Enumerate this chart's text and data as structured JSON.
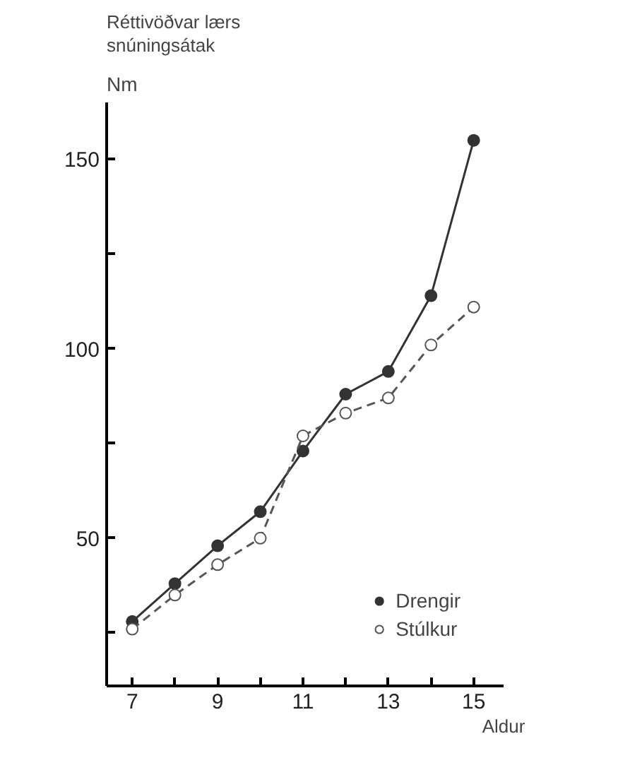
{
  "chart_data": {
    "type": "line",
    "title": "Réttivöðvar lærs\nsnúningsátak",
    "ylabel": "Nm",
    "xlabel": "Aldur",
    "x": [
      7,
      8,
      9,
      10,
      11,
      12,
      13,
      14,
      15
    ],
    "series": [
      {
        "name": "Drengir",
        "color": "#333333",
        "marker": "circle",
        "line_style": "solid",
        "values": [
          28,
          38,
          48,
          57,
          73,
          88,
          94,
          114,
          155
        ]
      },
      {
        "name": "Stúlkur",
        "color": "#555555",
        "marker": "circle",
        "line_style": "dashed",
        "values": [
          26,
          35,
          43,
          50,
          77,
          83,
          87,
          101,
          111
        ]
      }
    ],
    "xlim": [
      6.4,
      15.7
    ],
    "xticks": [
      {
        "value": 7,
        "label": "7"
      },
      {
        "value": 8,
        "label": null
      },
      {
        "value": 9,
        "label": "9"
      },
      {
        "value": 10,
        "label": null
      },
      {
        "value": 11,
        "label": "11"
      },
      {
        "value": 12,
        "label": null
      },
      {
        "value": 13,
        "label": "13"
      },
      {
        "value": 14,
        "label": null
      },
      {
        "value": 15,
        "label": "15"
      }
    ],
    "ylim": [
      11,
      165
    ],
    "yticks": [
      {
        "value": 25,
        "label": null
      },
      50,
      {
        "value": 75,
        "label": null
      },
      100,
      {
        "value": 125,
        "label": null
      },
      150
    ],
    "grid": false,
    "legend": "bottom right"
  }
}
